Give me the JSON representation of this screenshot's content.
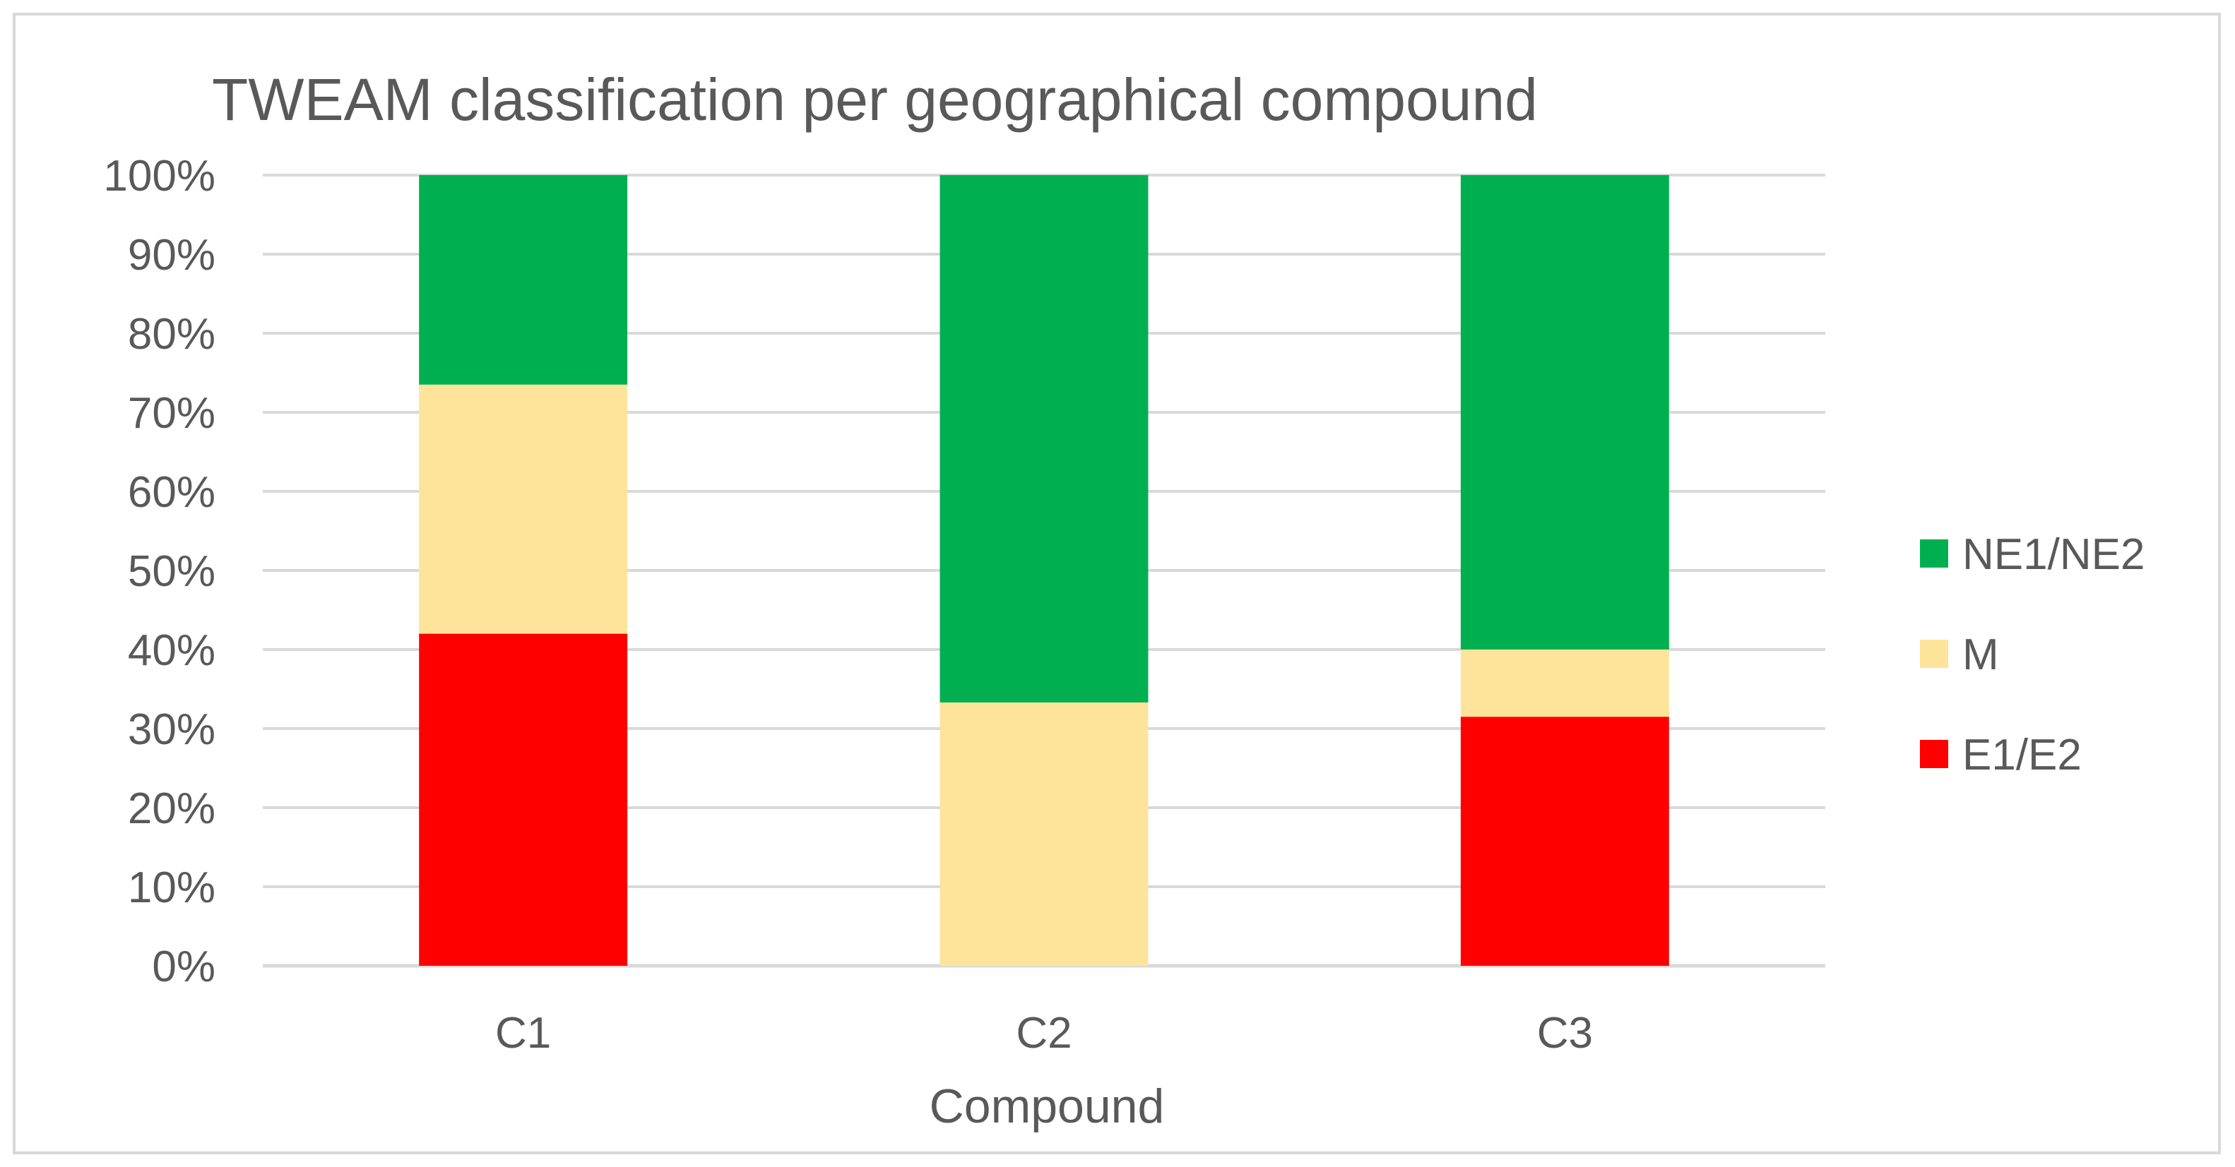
{
  "chart_data": {
    "type": "bar",
    "stacked": true,
    "percent_stacked": true,
    "title": "TWEAM classification per geographical compound",
    "xlabel": "Compound",
    "ylabel": "",
    "categories": [
      "C1",
      "C2",
      "C3"
    ],
    "series": [
      {
        "name": "E1/E2",
        "color": "#ff0000",
        "values": [
          42,
          0,
          31.5
        ]
      },
      {
        "name": "M",
        "color": "#fde49a",
        "values": [
          31.5,
          33.3,
          8.5
        ]
      },
      {
        "name": "NE1/NE2",
        "color": "#00b050",
        "values": [
          26.5,
          66.7,
          60
        ]
      }
    ],
    "ylim": [
      0,
      100
    ],
    "yticks": [
      "0%",
      "10%",
      "20%",
      "30%",
      "40%",
      "50%",
      "60%",
      "70%",
      "80%",
      "90%",
      "100%"
    ],
    "grid": true,
    "legend_position": "right",
    "legend_order": [
      "NE1/NE2",
      "M",
      "E1/E2"
    ]
  }
}
